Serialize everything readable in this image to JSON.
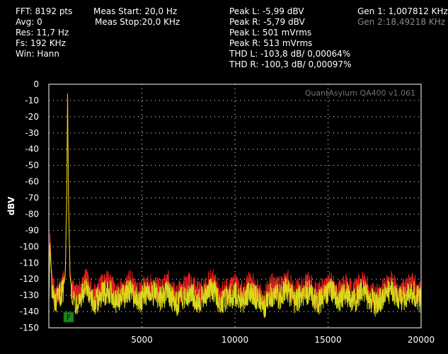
{
  "stats_left": [
    "FFT: 8192 pts",
    "Avg: 0",
    "Res: 11,7 Hz",
    "Fs: 192 KHz",
    "Win: Hann"
  ],
  "stats_meas": [
    "Meas Start: 20,0 Hz",
    "Meas Stop:20,0 KHz"
  ],
  "stats_peak": [
    "Peak L: -5,99 dBV",
    "Peak R: -5,79 dBV",
    "Peak L: 501 mVrms",
    "Peak R: 513 mVrms",
    "THD L: -103,8 dB/ 0,00064%",
    "THD R: -100,3 dB/ 0,00097%"
  ],
  "generators": {
    "gen1": "Gen 1: 1,007812 KHz",
    "gen2": "Gen 2:18,49218 KHz"
  },
  "plot": {
    "watermark": "QuantAsylum QA400 v1.061",
    "marker_label": "F",
    "marker_color": "#1a8a1a",
    "background": "#000000",
    "grid_color": "#ffffff",
    "border_color": "#ffffff"
  },
  "chart_data": {
    "type": "line",
    "ylabel": "dBV",
    "xlabel": "",
    "xlim": [
      0,
      20000
    ],
    "ylim": [
      -150,
      0
    ],
    "x_ticks": [
      5000,
      10000,
      15000,
      20000
    ],
    "y_ticks": [
      0,
      -10,
      -20,
      -30,
      -40,
      -50,
      -60,
      -70,
      -80,
      -90,
      -100,
      -110,
      -120,
      -130,
      -140,
      -150
    ],
    "grid": true,
    "series": [
      {
        "color": "#e02020",
        "peak": {
          "x": 1008,
          "y": -5.99
        },
        "noise_floor": [
          -138,
          -118
        ],
        "points": [
          [
            0,
            -128
          ],
          [
            60,
            -92
          ],
          [
            180,
            -124
          ],
          [
            360,
            -131
          ],
          [
            560,
            -127
          ],
          [
            760,
            -124
          ],
          [
            880,
            -116
          ],
          [
            960,
            -68
          ],
          [
            1008,
            -5.99
          ],
          [
            1060,
            -70
          ],
          [
            1140,
            -116
          ],
          [
            1260,
            -124
          ],
          [
            1420,
            -131
          ],
          [
            1700,
            -126
          ],
          [
            2000,
            -121
          ],
          [
            2400,
            -130
          ],
          [
            2800,
            -125
          ],
          [
            3200,
            -122
          ],
          [
            3600,
            -129
          ],
          [
            4000,
            -127
          ],
          [
            4400,
            -121
          ],
          [
            4800,
            -130
          ],
          [
            5200,
            -125
          ],
          [
            5600,
            -124
          ],
          [
            6000,
            -128
          ],
          [
            6400,
            -122
          ],
          [
            6800,
            -131
          ],
          [
            7200,
            -126
          ],
          [
            7600,
            -123
          ],
          [
            8000,
            -129
          ],
          [
            8400,
            -125
          ],
          [
            8800,
            -121
          ],
          [
            9200,
            -130
          ],
          [
            9600,
            -126
          ],
          [
            10000,
            -124
          ],
          [
            10400,
            -129
          ],
          [
            10800,
            -122
          ],
          [
            11200,
            -127
          ],
          [
            11600,
            -131
          ],
          [
            12000,
            -124
          ],
          [
            12400,
            -126
          ],
          [
            12800,
            -121
          ],
          [
            13200,
            -129
          ],
          [
            13600,
            -125
          ],
          [
            14000,
            -123
          ],
          [
            14400,
            -130
          ],
          [
            14800,
            -126
          ],
          [
            15200,
            -122
          ],
          [
            15600,
            -128
          ],
          [
            16000,
            -124
          ],
          [
            16400,
            -129
          ],
          [
            16800,
            -121
          ],
          [
            17200,
            -127
          ],
          [
            17600,
            -131
          ],
          [
            18000,
            -125
          ],
          [
            18400,
            -122
          ],
          [
            18800,
            -128
          ],
          [
            19200,
            -126
          ],
          [
            19600,
            -123
          ],
          [
            20000,
            -130
          ]
        ]
      },
      {
        "color": "#d8d81a",
        "peak": {
          "x": 1008,
          "y": -5.79
        },
        "noise_floor": [
          -142,
          -120
        ],
        "points": [
          [
            0,
            -134
          ],
          [
            60,
            -98
          ],
          [
            180,
            -128
          ],
          [
            360,
            -136
          ],
          [
            560,
            -130
          ],
          [
            760,
            -127
          ],
          [
            880,
            -118
          ],
          [
            960,
            -72
          ],
          [
            1008,
            -5.79
          ],
          [
            1060,
            -74
          ],
          [
            1140,
            -119
          ],
          [
            1260,
            -128
          ],
          [
            1420,
            -135
          ],
          [
            1700,
            -131
          ],
          [
            2000,
            -127
          ],
          [
            2400,
            -136
          ],
          [
            2800,
            -130
          ],
          [
            3200,
            -127
          ],
          [
            3600,
            -133
          ],
          [
            4000,
            -131
          ],
          [
            4400,
            -126
          ],
          [
            4800,
            -135
          ],
          [
            5200,
            -129
          ],
          [
            5600,
            -128
          ],
          [
            6000,
            -133
          ],
          [
            6400,
            -127
          ],
          [
            6800,
            -136
          ],
          [
            7200,
            -131
          ],
          [
            7600,
            -128
          ],
          [
            8000,
            -134
          ],
          [
            8400,
            -130
          ],
          [
            8800,
            -126
          ],
          [
            9200,
            -135
          ],
          [
            9600,
            -131
          ],
          [
            10000,
            -129
          ],
          [
            10400,
            -134
          ],
          [
            10800,
            -127
          ],
          [
            11200,
            -132
          ],
          [
            11600,
            -136
          ],
          [
            12000,
            -129
          ],
          [
            12400,
            -131
          ],
          [
            12800,
            -126
          ],
          [
            13200,
            -134
          ],
          [
            13600,
            -130
          ],
          [
            14000,
            -128
          ],
          [
            14400,
            -135
          ],
          [
            14800,
            -131
          ],
          [
            15200,
            -127
          ],
          [
            15600,
            -133
          ],
          [
            16000,
            -129
          ],
          [
            16400,
            -134
          ],
          [
            16800,
            -126
          ],
          [
            17200,
            -132
          ],
          [
            17600,
            -136
          ],
          [
            18000,
            -130
          ],
          [
            18400,
            -127
          ],
          [
            18800,
            -133
          ],
          [
            19200,
            -131
          ],
          [
            19600,
            -128
          ],
          [
            20000,
            -134
          ]
        ]
      }
    ]
  }
}
